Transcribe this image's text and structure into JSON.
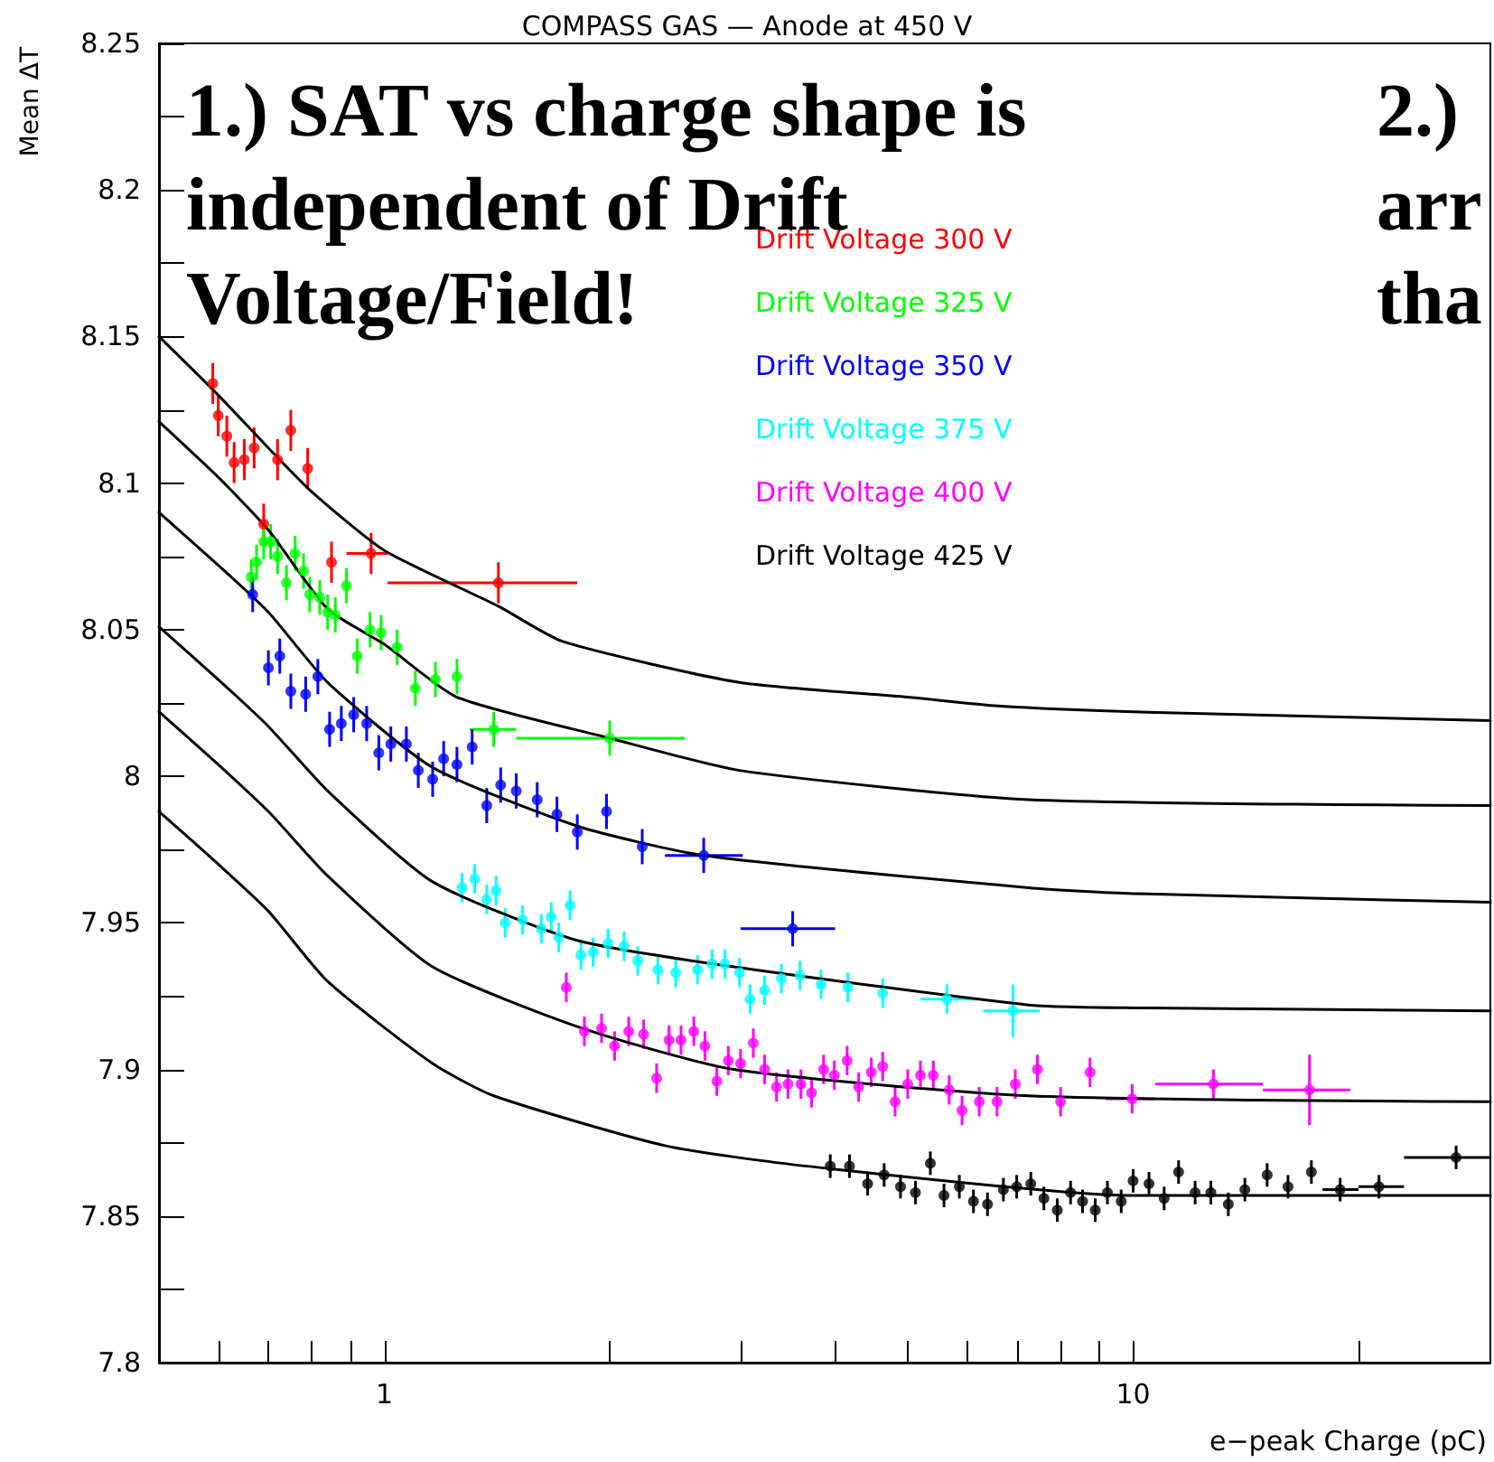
{
  "chart_data": {
    "type": "scatter",
    "title": "COMPASS GAS — Anode at 450 V",
    "xlabel": "e−peak Charge (pC)",
    "ylabel": "Mean ΔT",
    "annotations": [
      "1.) SAT vs charge shape is\nindependent of Drift\nVoltage/Field!",
      "2.)\narr\ntha"
    ],
    "log": "x",
    "grid": false,
    "legend": "top",
    "marker": "circle",
    "xlim": [
      0.5,
      30
    ],
    "xticks": [
      {
        "value": 0.6,
        "label": null
      },
      {
        "value": 0.7,
        "label": null
      },
      {
        "value": 0.8,
        "label": null
      },
      {
        "value": 0.9,
        "label": null
      },
      1,
      {
        "value": 2,
        "label": null
      },
      {
        "value": 3,
        "label": null
      },
      {
        "value": 4,
        "label": null
      },
      {
        "value": 5,
        "label": null
      },
      {
        "value": 6,
        "label": null
      },
      {
        "value": 7,
        "label": null
      },
      {
        "value": 8,
        "label": null
      },
      {
        "value": 9,
        "label": null
      },
      10,
      {
        "value": 20,
        "label": null
      }
    ],
    "ylim": [
      7.8,
      8.25
    ],
    "yticks": [
      7.8,
      {
        "value": 7.825,
        "label": null
      },
      7.85,
      {
        "value": 7.875,
        "label": null
      },
      7.9,
      {
        "value": 7.925,
        "label": null
      },
      7.95,
      {
        "value": 7.975,
        "label": null
      },
      8,
      {
        "value": 8.025,
        "label": null
      },
      8.05,
      {
        "value": 8.075,
        "label": null
      },
      8.1,
      {
        "value": 8.125,
        "label": null
      },
      8.15,
      {
        "value": 8.175,
        "label": null
      },
      8.2,
      {
        "value": 8.225,
        "label": null
      },
      8.25
    ],
    "series": [
      {
        "name": "Drift Voltage 300 V",
        "color": "#ff0000",
        "x": [
          0.59,
          0.6,
          0.616,
          0.63,
          0.65,
          0.67,
          0.69,
          0.72,
          0.75,
          0.79,
          0.85,
          0.96,
          1.42
        ],
        "values": [
          8.134,
          8.123,
          8.116,
          8.107,
          8.108,
          8.112,
          8.086,
          8.108,
          8.118,
          8.105,
          8.073,
          8.076,
          8.066
        ],
        "errors": [
          0.007,
          0.007,
          0.007,
          0.007,
          0.007,
          0.007,
          0.007,
          0.007,
          0.007,
          0.007,
          0.007,
          0.007,
          0.007
        ],
        "xerrors": [
          null,
          null,
          null,
          null,
          null,
          null,
          null,
          null,
          null,
          null,
          null,
          [
            0.89,
            1.01
          ],
          [
            1.01,
            1.81
          ]
        ]
      },
      {
        "name": "Drift Voltage 325 V",
        "color": "#00ff00",
        "x": [
          0.664,
          0.675,
          0.69,
          0.705,
          0.72,
          0.74,
          0.76,
          0.78,
          0.795,
          0.82,
          0.84,
          0.86,
          0.89,
          0.92,
          0.957,
          0.99,
          1.04,
          1.1,
          1.17,
          1.25,
          1.4,
          2.0
        ],
        "values": [
          8.068,
          8.073,
          8.08,
          8.08,
          8.075,
          8.066,
          8.076,
          8.07,
          8.062,
          8.061,
          8.056,
          8.055,
          8.065,
          8.041,
          8.05,
          8.049,
          8.044,
          8.03,
          8.033,
          8.034,
          8.016,
          8.013
        ],
        "errors": [
          0.006,
          0.006,
          0.006,
          0.006,
          0.006,
          0.006,
          0.006,
          0.006,
          0.006,
          0.006,
          0.006,
          0.006,
          0.006,
          0.006,
          0.006,
          0.006,
          0.006,
          0.006,
          0.006,
          0.006,
          0.006,
          0.006
        ],
        "xerrors": [
          null,
          null,
          null,
          null,
          null,
          null,
          null,
          null,
          null,
          null,
          null,
          null,
          null,
          null,
          null,
          null,
          null,
          null,
          null,
          null,
          [
            1.3,
            1.5
          ],
          [
            1.5,
            2.52
          ]
        ]
      },
      {
        "name": "Drift Voltage 350 V",
        "color": "#0000ff",
        "x": [
          0.667,
          0.7,
          0.725,
          0.75,
          0.785,
          0.815,
          0.845,
          0.876,
          0.91,
          0.947,
          0.983,
          1.02,
          1.07,
          1.11,
          1.16,
          1.2,
          1.25,
          1.31,
          1.37,
          1.43,
          1.5,
          1.6,
          1.7,
          1.81,
          1.98,
          2.21,
          2.67,
          3.51
        ],
        "values": [
          8.062,
          8.037,
          8.041,
          8.029,
          8.028,
          8.034,
          8.016,
          8.018,
          8.021,
          8.018,
          8.008,
          8.011,
          8.011,
          8.002,
          7.999,
          8.006,
          8.004,
          8.01,
          7.99,
          7.997,
          7.995,
          7.992,
          7.987,
          7.981,
          7.988,
          7.976,
          7.973,
          7.948
        ],
        "errors": [
          0.006,
          0.006,
          0.006,
          0.006,
          0.006,
          0.006,
          0.006,
          0.006,
          0.006,
          0.006,
          0.006,
          0.006,
          0.006,
          0.006,
          0.006,
          0.006,
          0.006,
          0.006,
          0.006,
          0.006,
          0.006,
          0.006,
          0.006,
          0.006,
          0.006,
          0.006,
          0.006,
          0.006
        ],
        "xerrors": [
          null,
          null,
          null,
          null,
          null,
          null,
          null,
          null,
          null,
          null,
          null,
          null,
          null,
          null,
          null,
          null,
          null,
          null,
          null,
          null,
          null,
          null,
          null,
          null,
          null,
          null,
          [
            2.37,
            3.01
          ],
          [
            2.99,
            4.0
          ]
        ]
      },
      {
        "name": "Drift Voltage 375 V",
        "color": "#00ffff",
        "x": [
          1.27,
          1.32,
          1.37,
          1.41,
          1.45,
          1.53,
          1.62,
          1.67,
          1.71,
          1.77,
          1.83,
          1.9,
          1.99,
          2.09,
          2.18,
          2.32,
          2.45,
          2.62,
          2.74,
          2.85,
          2.98,
          3.08,
          3.22,
          3.39,
          3.59,
          3.83,
          4.16,
          4.63,
          5.64,
          6.91
        ],
        "values": [
          7.962,
          7.965,
          7.958,
          7.961,
          7.95,
          7.951,
          7.948,
          7.952,
          7.945,
          7.956,
          7.939,
          7.94,
          7.943,
          7.942,
          7.937,
          7.934,
          7.933,
          7.934,
          7.936,
          7.936,
          7.933,
          7.924,
          7.927,
          7.931,
          7.932,
          7.929,
          7.928,
          7.926,
          7.924,
          7.92
        ],
        "errors": [
          0.005,
          0.005,
          0.005,
          0.005,
          0.005,
          0.005,
          0.005,
          0.005,
          0.005,
          0.005,
          0.005,
          0.005,
          0.005,
          0.005,
          0.005,
          0.005,
          0.005,
          0.005,
          0.005,
          0.005,
          0.005,
          0.005,
          0.005,
          0.005,
          0.005,
          0.005,
          0.005,
          0.005,
          0.005,
          0.009
        ],
        "xerrors": [
          null,
          null,
          null,
          null,
          null,
          null,
          null,
          null,
          null,
          null,
          null,
          null,
          null,
          null,
          null,
          null,
          null,
          null,
          null,
          null,
          null,
          null,
          null,
          null,
          null,
          null,
          null,
          null,
          [
            5.2,
            6.2
          ],
          [
            6.31,
            7.5
          ]
        ]
      },
      {
        "name": "Drift Voltage 400 V",
        "color": "#ff00ff",
        "x": [
          1.75,
          1.85,
          1.95,
          2.03,
          2.12,
          2.22,
          2.31,
          2.4,
          2.49,
          2.59,
          2.68,
          2.78,
          2.88,
          2.99,
          3.11,
          3.22,
          3.34,
          3.46,
          3.6,
          3.72,
          3.86,
          3.99,
          4.15,
          4.3,
          4.47,
          4.63,
          4.81,
          5.0,
          5.2,
          5.41,
          5.68,
          5.91,
          6.23,
          6.58,
          6.96,
          7.45,
          8.0,
          8.76,
          9.97,
          12.8,
          17.2
        ],
        "values": [
          7.928,
          7.913,
          7.914,
          7.908,
          7.913,
          7.912,
          7.897,
          7.91,
          7.91,
          7.913,
          7.908,
          7.896,
          7.903,
          7.902,
          7.909,
          7.9,
          7.894,
          7.895,
          7.895,
          7.892,
          7.9,
          7.898,
          7.903,
          7.894,
          7.899,
          7.901,
          7.889,
          7.895,
          7.898,
          7.898,
          7.893,
          7.886,
          7.889,
          7.889,
          7.895,
          7.9,
          7.889,
          7.899,
          7.89,
          7.895,
          7.893
        ],
        "errors": [
          0.005,
          0.005,
          0.005,
          0.005,
          0.005,
          0.005,
          0.005,
          0.005,
          0.005,
          0.005,
          0.005,
          0.005,
          0.005,
          0.005,
          0.005,
          0.005,
          0.005,
          0.005,
          0.005,
          0.005,
          0.005,
          0.005,
          0.005,
          0.005,
          0.005,
          0.005,
          0.005,
          0.005,
          0.005,
          0.005,
          0.005,
          0.005,
          0.005,
          0.005,
          0.005,
          0.005,
          0.005,
          0.005,
          0.005,
          0.005,
          0.012
        ],
        "xerrors": [
          null,
          null,
          null,
          null,
          null,
          null,
          null,
          null,
          null,
          null,
          null,
          null,
          null,
          null,
          null,
          null,
          null,
          null,
          null,
          null,
          null,
          null,
          null,
          null,
          null,
          null,
          null,
          null,
          null,
          null,
          null,
          null,
          null,
          null,
          null,
          null,
          null,
          null,
          [
            9.2,
            10.7
          ],
          [
            10.7,
            14.9
          ],
          [
            14.9,
            19.5
          ]
        ]
      },
      {
        "name": "Drift Voltage 425 V",
        "color": "#000000",
        "x": [
          3.94,
          4.18,
          4.42,
          4.65,
          4.89,
          5.12,
          5.36,
          5.59,
          5.86,
          6.12,
          6.39,
          6.71,
          6.99,
          7.3,
          7.6,
          7.92,
          8.25,
          8.56,
          8.9,
          9.24,
          9.64,
          10.0,
          10.5,
          11.0,
          11.5,
          12.1,
          12.7,
          13.4,
          14.1,
          15.1,
          16.1,
          17.3,
          18.9,
          21.3,
          27.0
        ],
        "values": [
          7.867,
          7.867,
          7.861,
          7.864,
          7.86,
          7.858,
          7.868,
          7.857,
          7.86,
          7.855,
          7.854,
          7.859,
          7.86,
          7.861,
          7.856,
          7.852,
          7.858,
          7.855,
          7.852,
          7.858,
          7.855,
          7.862,
          7.861,
          7.856,
          7.865,
          7.858,
          7.858,
          7.854,
          7.859,
          7.864,
          7.86,
          7.865,
          7.859,
          7.86,
          7.87
        ],
        "errors": [
          0.004,
          0.004,
          0.004,
          0.004,
          0.004,
          0.004,
          0.004,
          0.004,
          0.004,
          0.004,
          0.004,
          0.004,
          0.004,
          0.004,
          0.004,
          0.004,
          0.004,
          0.004,
          0.004,
          0.004,
          0.004,
          0.004,
          0.004,
          0.004,
          0.004,
          0.004,
          0.004,
          0.004,
          0.004,
          0.004,
          0.004,
          0.004,
          0.004,
          0.004,
          0.004
        ],
        "xerrors": [
          null,
          null,
          null,
          null,
          null,
          null,
          null,
          null,
          null,
          null,
          null,
          null,
          null,
          null,
          null,
          null,
          null,
          null,
          null,
          null,
          null,
          null,
          null,
          null,
          null,
          null,
          null,
          null,
          null,
          null,
          null,
          null,
          [
            17.9,
            20.0
          ],
          [
            20.0,
            23.0
          ],
          [
            23.0,
            30.0
          ]
        ]
      },
      {
        "type": "line",
        "marker": "none",
        "color": "#000000",
        "x": [
          0.5,
          0.6,
          0.7,
          0.8,
          1,
          1.42,
          1.73,
          2.98,
          5,
          6.6,
          10,
          30
        ],
        "values": [
          8.15,
          8.13,
          8.112,
          8.097,
          8.077,
          8.058,
          8.046,
          8.032,
          8.027,
          8.024,
          8.022,
          8.019
        ]
      },
      {
        "type": "line",
        "marker": "none",
        "color": "#000000",
        "x": [
          0.5,
          0.6,
          0.7,
          0.84,
          1,
          1.25,
          2,
          2.98,
          7.25,
          30
        ],
        "values": [
          8.121,
          8.102,
          8.084,
          8.057,
          8.045,
          8.027,
          8.013,
          8.002,
          7.992,
          7.99
        ]
      },
      {
        "type": "line",
        "marker": "none",
        "color": "#000000",
        "x": [
          0.5,
          0.6,
          0.7,
          0.84,
          1.16,
          1.81,
          2.67,
          7.25,
          10,
          30
        ],
        "values": [
          8.09,
          8.072,
          8.056,
          8.032,
          8.003,
          7.983,
          7.973,
          7.962,
          7.96,
          7.957
        ]
      },
      {
        "type": "line",
        "marker": "none",
        "color": "#000000",
        "x": [
          0.5,
          0.6,
          0.7,
          0.84,
          1.16,
          1.81,
          2.93,
          7.25,
          10,
          30
        ],
        "values": [
          8.051,
          8.033,
          8.017,
          7.995,
          7.964,
          7.944,
          7.935,
          7.922,
          7.921,
          7.92
        ]
      },
      {
        "type": "line",
        "marker": "none",
        "color": "#000000",
        "x": [
          0.5,
          0.6,
          0.7,
          0.84,
          1.16,
          1.84,
          2.93,
          7.25,
          30
        ],
        "values": [
          8.022,
          8.004,
          7.988,
          7.966,
          7.935,
          7.914,
          7.9,
          7.891,
          7.889
        ]
      },
      {
        "type": "line",
        "marker": "none",
        "color": "#000000",
        "x": [
          0.5,
          0.6,
          0.7,
          0.84,
          1.16,
          1.4,
          2.37,
          3.67,
          10,
          30
        ],
        "values": [
          7.988,
          7.97,
          7.954,
          7.93,
          7.902,
          7.891,
          7.874,
          7.867,
          7.857,
          7.857
        ]
      }
    ]
  }
}
